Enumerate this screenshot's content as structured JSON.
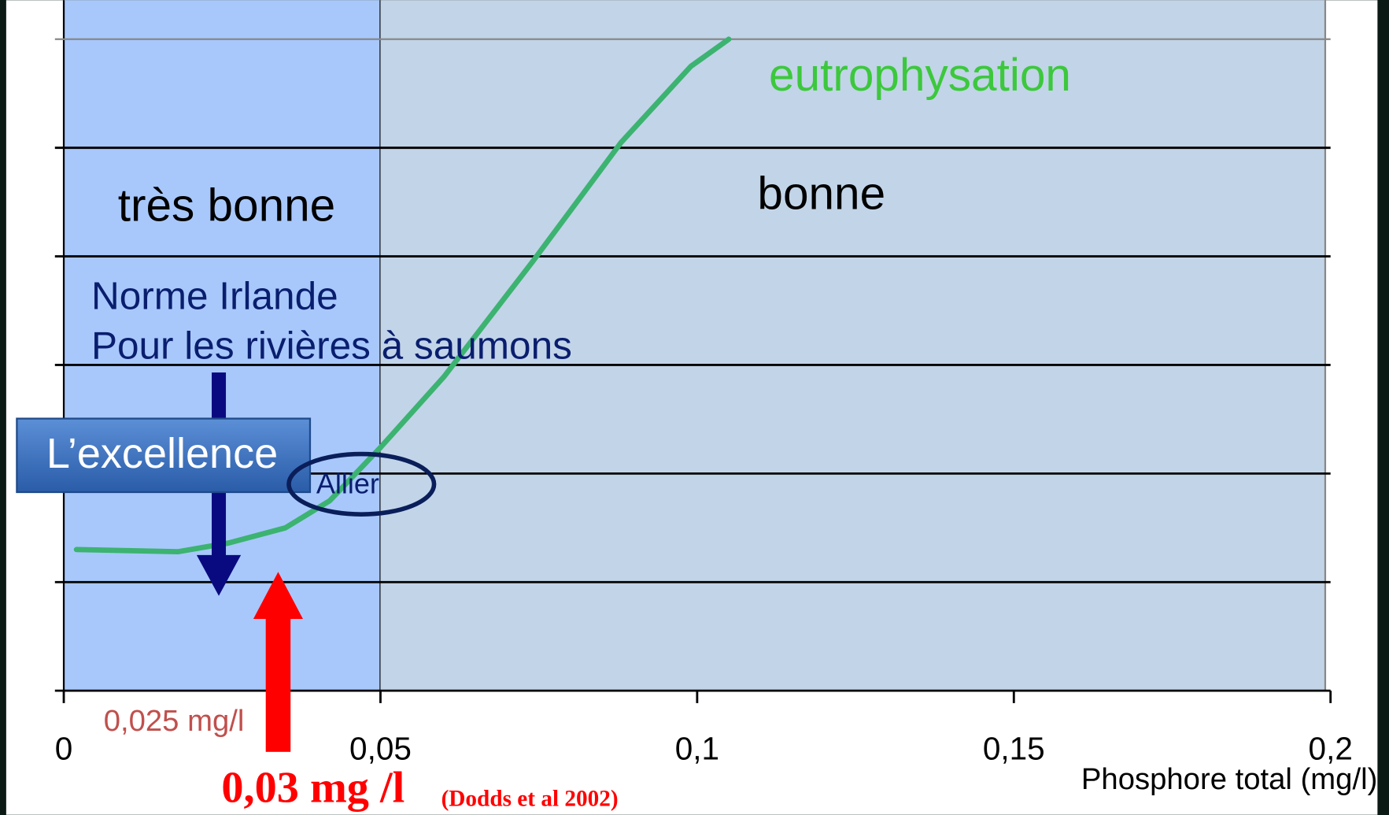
{
  "chart_data": {
    "type": "line",
    "x_label": "Phosphore total (mg/l)",
    "xlim": [
      0,
      0.2
    ],
    "xticks": [
      0,
      {
        "value": 0.05,
        "label": "0,05"
      },
      {
        "value": 0.1,
        "label": "0,1"
      },
      {
        "value": 0.15,
        "label": "0,15"
      },
      {
        "value": 0.2,
        "label": "0,2"
      }
    ],
    "ylim": [
      0,
      6
    ],
    "yticks": [
      0,
      1,
      2,
      3,
      4,
      5,
      6
    ],
    "grid": true,
    "regions": [
      {
        "label": "très bonne",
        "from": 0,
        "to": 0.05,
        "color": "#a8c8fc"
      },
      {
        "label": "bonne",
        "from": 0.05,
        "to": 0.2,
        "color": "#c2d4e8"
      }
    ],
    "series": [
      {
        "name": "eutrophysation",
        "color": "#3cb371",
        "x": [
          0.002,
          0.018,
          0.026,
          0.035,
          0.042,
          0.05,
          0.06,
          0.074,
          0.088,
          0.099,
          0.105
        ],
        "values": [
          1.3,
          1.28,
          1.36,
          1.5,
          1.75,
          2.24,
          2.89,
          3.95,
          5.05,
          5.75,
          6.0
        ]
      }
    ],
    "annotations": {
      "norme_line1": "Norme Irlande",
      "norme_line2": "Pour les rivières à saumons",
      "excellence": "L’excellence",
      "allier": "Allier",
      "value_025": "0,025 mg/l",
      "value_03": "0,03 mg /l",
      "source": "(Dodds et al 2002)"
    }
  }
}
